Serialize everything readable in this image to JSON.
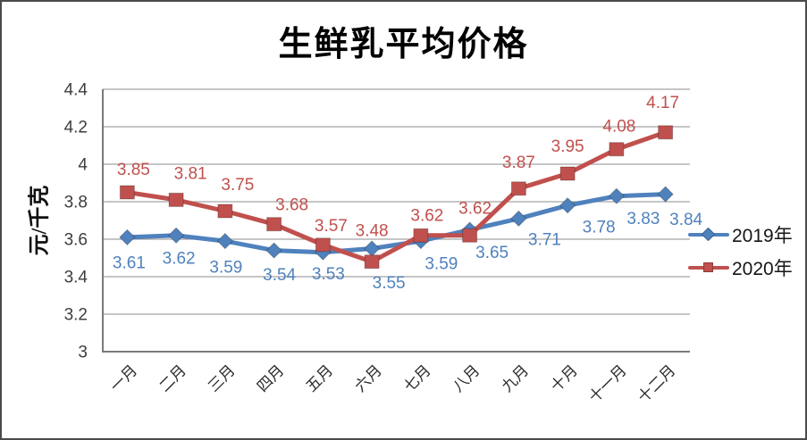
{
  "chart_data": {
    "type": "line",
    "title": "生鲜乳平均价格",
    "xlabel": "",
    "ylabel": "元/千克",
    "categories": [
      "一月",
      "二月",
      "三月",
      "四月",
      "五月",
      "六月",
      "七月",
      "八月",
      "九月",
      "十月",
      "十一月",
      "十二月"
    ],
    "series": [
      {
        "name": "2019年",
        "color": "#4F81BD",
        "marker": "diamond",
        "values": [
          3.61,
          3.62,
          3.59,
          3.54,
          3.53,
          3.55,
          3.59,
          3.65,
          3.71,
          3.78,
          3.83,
          3.84
        ]
      },
      {
        "name": "2020年",
        "color": "#C0504D",
        "marker": "square",
        "values": [
          3.85,
          3.81,
          3.75,
          3.68,
          3.57,
          3.48,
          3.62,
          3.62,
          3.87,
          3.95,
          4.08,
          4.17
        ]
      }
    ],
    "ylim": [
      3,
      4.4
    ],
    "ytick_step": 0.2,
    "ytick_labels": [
      "3",
      "3.2",
      "3.4",
      "3.6",
      "3.8",
      "4",
      "4.2",
      "4.4"
    ],
    "grid": true,
    "data_labels": true,
    "legend_position": "right",
    "colors": {
      "gridline": "#a3a3a3",
      "axis": "#7a7a7a",
      "tick_text": "#3d3d3d",
      "category_text": "#2b2b2b",
      "title_text": "#000000"
    }
  }
}
